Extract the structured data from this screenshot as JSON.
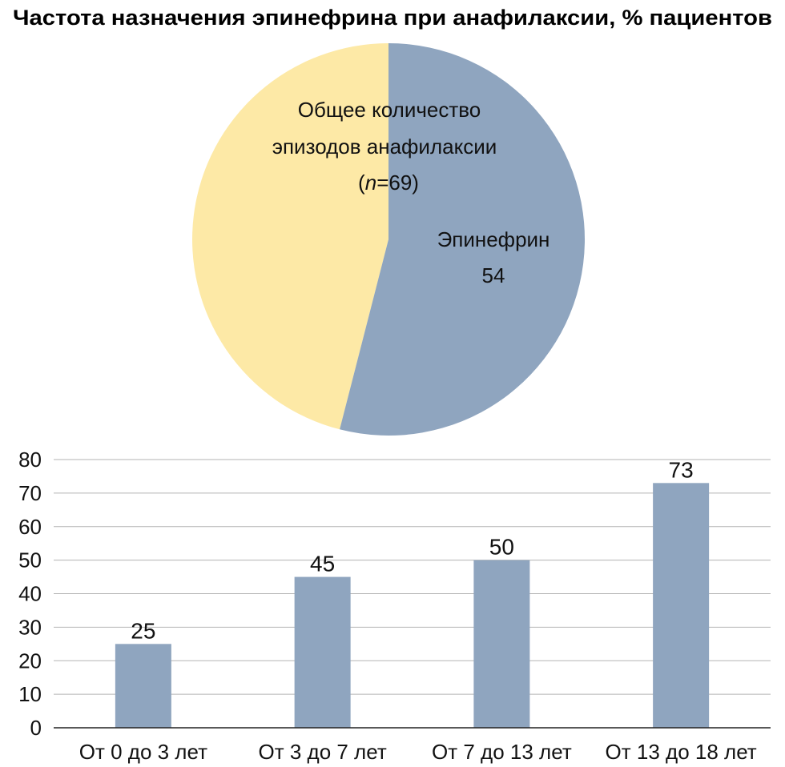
{
  "title": "Частота назначения эпинефрина при анафилаксии, % пациентов",
  "chart_data": [
    {
      "type": "pie",
      "categories": [
        "Эпинефрин",
        ""
      ],
      "values": [
        54,
        46
      ],
      "total_label": {
        "line1": "Общее количество",
        "line2": "эпизодов анафилаксии",
        "n_prefix": "(",
        "n_var": "n",
        "n_rest": "=69)"
      },
      "slice_label": {
        "name": "Эпинефрин",
        "value": "54"
      },
      "colors": [
        "#8fa5bf",
        "#fde9a6"
      ]
    },
    {
      "type": "bar",
      "categories": [
        "От 0 до 3 лет",
        "От 3 до 7 лет",
        "От 7 до 13 лет",
        "От 13 до 18 лет"
      ],
      "values": [
        25,
        45,
        50,
        73
      ],
      "ylim": [
        0,
        80
      ],
      "yticks": [
        0,
        10,
        20,
        30,
        40,
        50,
        60,
        70,
        80
      ],
      "grid": true,
      "bar_color": "#8fa5bf",
      "xlabel": "",
      "ylabel": ""
    }
  ]
}
